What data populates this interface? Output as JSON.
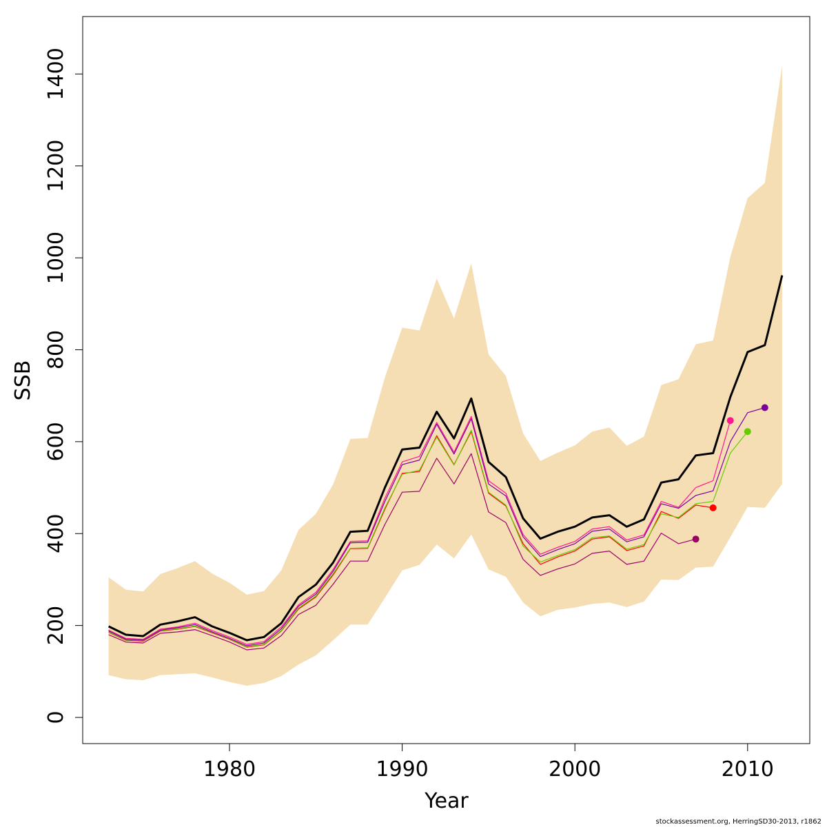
{
  "chart_data": {
    "type": "line",
    "xlabel": "Year",
    "ylabel": "SSB",
    "xlim": [
      1971.5,
      2013.6
    ],
    "ylim": [
      -57,
      1525
    ],
    "x_ticks": [
      1980,
      1990,
      2000,
      2010
    ],
    "y_ticks": [
      0,
      200,
      400,
      600,
      800,
      1000,
      1200,
      1400
    ],
    "grid": false,
    "band": {
      "color": "#F5DEB3",
      "x": [
        1973,
        1974,
        1975,
        1976,
        1977,
        1978,
        1979,
        1980,
        1981,
        1982,
        1983,
        1984,
        1985,
        1986,
        1987,
        1988,
        1989,
        1990,
        1991,
        1992,
        1993,
        1994,
        1995,
        1996,
        1997,
        1998,
        1999,
        2000,
        2001,
        2002,
        2003,
        2004,
        2005,
        2006,
        2007,
        2008,
        2009,
        2010,
        2011,
        2012
      ],
      "upper": [
        305,
        278,
        274,
        312,
        325,
        340,
        313,
        293,
        267,
        275,
        320,
        408,
        443,
        507,
        606,
        608,
        740,
        848,
        842,
        955,
        868,
        988,
        790,
        743,
        618,
        558,
        576,
        592,
        622,
        631,
        591,
        611,
        723,
        736,
        812,
        820,
        1002,
        1130,
        1163,
        1418
      ],
      "lower": [
        92,
        83,
        81,
        92,
        94,
        96,
        87,
        77,
        69,
        75,
        90,
        115,
        135,
        168,
        202,
        202,
        260,
        320,
        332,
        376,
        346,
        398,
        322,
        306,
        250,
        220,
        234,
        239,
        247,
        250,
        240,
        252,
        300,
        299,
        326,
        328,
        392,
        458,
        456,
        508
      ]
    },
    "series": [
      {
        "color": "#000000",
        "width": 3,
        "x": [
          1973,
          1974,
          1975,
          1976,
          1977,
          1978,
          1979,
          1980,
          1981,
          1982,
          1983,
          1984,
          1985,
          1986,
          1987,
          1988,
          1989,
          1990,
          1991,
          1992,
          1993,
          1994,
          1995,
          1996,
          1997,
          1998,
          1999,
          2000,
          2001,
          2002,
          2003,
          2004,
          2005,
          2006,
          2007,
          2008,
          2009,
          2010,
          2011,
          2012
        ],
        "y": [
          198,
          180,
          177,
          202,
          209,
          218,
          198,
          184,
          168,
          175,
          205,
          262,
          289,
          337,
          404,
          406,
          500,
          583,
          587,
          665,
          607,
          694,
          556,
          523,
          433,
          389,
          404,
          415,
          435,
          440,
          415,
          431,
          511,
          518,
          570,
          575,
          697,
          795,
          810,
          962
        ]
      },
      {
        "color": "#9C0065",
        "width": 1.2,
        "x": [
          1973,
          1974,
          1975,
          1976,
          1977,
          1978,
          1979,
          1980,
          1981,
          1982,
          1983,
          1984,
          1985,
          1986,
          1987,
          1988,
          1989,
          1990,
          1991,
          1992,
          1993,
          1994,
          1995,
          1996,
          1997,
          1998,
          1999,
          2000,
          2001,
          2002,
          2003,
          2004,
          2005,
          2006,
          2007
        ],
        "y": [
          180,
          164,
          162,
          183,
          186,
          191,
          178,
          164,
          147,
          151,
          178,
          224,
          244,
          290,
          340,
          340,
          420,
          490,
          492,
          564,
          508,
          574,
          447,
          424,
          344,
          309,
          323,
          334,
          357,
          362,
          333,
          340,
          401,
          378,
          388
        ]
      },
      {
        "color": "#FF0000",
        "width": 1.2,
        "x": [
          1973,
          1974,
          1975,
          1976,
          1977,
          1978,
          1979,
          1980,
          1981,
          1982,
          1983,
          1984,
          1985,
          1986,
          1987,
          1988,
          1989,
          1990,
          1991,
          1992,
          1993,
          1994,
          1995,
          1996,
          1997,
          1998,
          1999,
          2000,
          2001,
          2002,
          2003,
          2004,
          2005,
          2006,
          2007,
          2008
        ],
        "y": [
          185,
          168,
          166,
          188,
          192,
          198,
          184,
          170,
          153,
          158,
          188,
          236,
          262,
          310,
          367,
          368,
          453,
          531,
          535,
          613,
          550,
          622,
          488,
          460,
          378,
          333,
          349,
          362,
          388,
          393,
          363,
          373,
          448,
          433,
          462,
          456
        ]
      },
      {
        "color": "#FF1493",
        "width": 1.2,
        "x": [
          1973,
          1974,
          1975,
          1976,
          1977,
          1978,
          1979,
          1980,
          1981,
          1982,
          1983,
          1984,
          1985,
          1986,
          1987,
          1988,
          1989,
          1990,
          1991,
          1992,
          1993,
          1994,
          1995,
          1996,
          1997,
          1998,
          1999,
          2000,
          2001,
          2002,
          2003,
          2004,
          2005,
          2006,
          2007,
          2008,
          2009
        ],
        "y": [
          190,
          172,
          170,
          192,
          197,
          205,
          189,
          175,
          159,
          165,
          197,
          245,
          272,
          322,
          383,
          384,
          477,
          556,
          568,
          642,
          577,
          655,
          515,
          488,
          398,
          355,
          370,
          383,
          410,
          415,
          386,
          397,
          470,
          457,
          500,
          515,
          646
        ]
      },
      {
        "color": "#66CC00",
        "width": 1.2,
        "x": [
          1973,
          1974,
          1975,
          1976,
          1977,
          1978,
          1979,
          1980,
          1981,
          1982,
          1983,
          1984,
          1985,
          1986,
          1987,
          1988,
          1989,
          1990,
          1991,
          1992,
          1993,
          1994,
          1995,
          1996,
          1997,
          1998,
          1999,
          2000,
          2001,
          2002,
          2003,
          2004,
          2005,
          2006,
          2007,
          2008,
          2009,
          2010
        ],
        "y": [
          186,
          169,
          167,
          189,
          193,
          199,
          185,
          171,
          154,
          159,
          189,
          238,
          264,
          313,
          368,
          369,
          456,
          529,
          538,
          610,
          549,
          625,
          490,
          462,
          373,
          338,
          352,
          365,
          391,
          395,
          366,
          376,
          443,
          435,
          465,
          470,
          575,
          622
        ]
      },
      {
        "color": "#7A00A0",
        "width": 1.2,
        "x": [
          1973,
          1974,
          1975,
          1976,
          1977,
          1978,
          1979,
          1980,
          1981,
          1982,
          1983,
          1984,
          1985,
          1986,
          1987,
          1988,
          1989,
          1990,
          1991,
          1992,
          1993,
          1994,
          1995,
          1996,
          1997,
          1998,
          1999,
          2000,
          2001,
          2002,
          2003,
          2004,
          2005,
          2006,
          2007,
          2008,
          2009,
          2010,
          2011
        ],
        "y": [
          188,
          170,
          168,
          190,
          195,
          202,
          186,
          172,
          156,
          162,
          193,
          242,
          268,
          318,
          380,
          381,
          470,
          550,
          560,
          638,
          573,
          650,
          508,
          482,
          393,
          350,
          365,
          378,
          405,
          410,
          382,
          393,
          465,
          455,
          483,
          493,
          600,
          663,
          674
        ]
      }
    ],
    "endpoints": [
      {
        "x": 2007,
        "y": 388,
        "color": "#9C0065"
      },
      {
        "x": 2008,
        "y": 456,
        "color": "#FF0000"
      },
      {
        "x": 2009,
        "y": 646,
        "color": "#FF1493"
      },
      {
        "x": 2010,
        "y": 622,
        "color": "#66CC00"
      },
      {
        "x": 2011,
        "y": 674,
        "color": "#7A00A0"
      }
    ]
  },
  "footer": "stockassessment.org, HerringSD30-2013, r1862"
}
